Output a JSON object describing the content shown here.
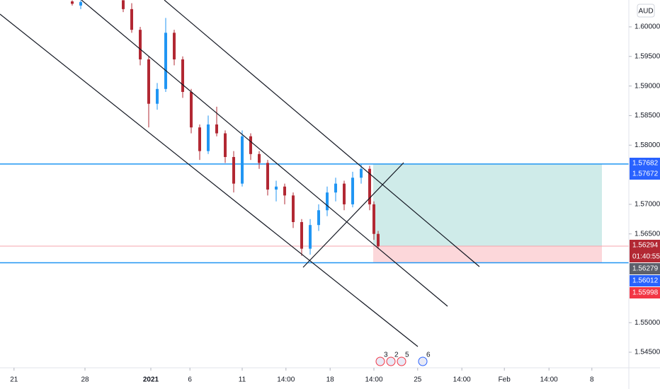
{
  "chart_data": {
    "type": "candlestick",
    "currency": "AUD",
    "up_color": "#2196f3",
    "down_color": "#b22833",
    "x": [
      17,
      19,
      29,
      31,
      33,
      35,
      37,
      39,
      41,
      43,
      45,
      47,
      49,
      51,
      53,
      55,
      57,
      59,
      61,
      63,
      65,
      67,
      69,
      71,
      73,
      75,
      77,
      79,
      81,
      83,
      85,
      87,
      88,
      89
    ],
    "open": [
      1.6043,
      1.6036,
      1.6045,
      1.603,
      1.5995,
      1.5945,
      1.587,
      1.5895,
      1.599,
      1.5945,
      1.589,
      1.583,
      1.579,
      1.5835,
      1.582,
      1.578,
      1.5735,
      1.5815,
      1.5785,
      1.577,
      1.5725,
      1.573,
      1.5715,
      1.567,
      1.5625,
      1.5665,
      1.569,
      1.572,
      1.5735,
      1.57,
      1.5745,
      1.576,
      1.57,
      1.565
    ],
    "high": [
      1.6045,
      1.6045,
      1.6045,
      1.604,
      1.6,
      1.595,
      1.5905,
      1.6015,
      1.5995,
      1.595,
      1.5895,
      1.5835,
      1.585,
      1.5865,
      1.5825,
      1.579,
      1.5825,
      1.582,
      1.579,
      1.5775,
      1.574,
      1.5735,
      1.572,
      1.5675,
      1.5675,
      1.57,
      1.573,
      1.5745,
      1.574,
      1.5755,
      1.5768,
      1.5765,
      1.5705,
      1.5655
    ],
    "low": [
      1.6036,
      1.603,
      1.6025,
      1.599,
      1.5935,
      1.583,
      1.586,
      1.589,
      1.5935,
      1.588,
      1.582,
      1.5775,
      1.5785,
      1.5815,
      1.577,
      1.572,
      1.573,
      1.5775,
      1.576,
      1.5715,
      1.5705,
      1.57,
      1.566,
      1.5613,
      1.5615,
      1.5655,
      1.568,
      1.5705,
      1.569,
      1.5695,
      1.5735,
      1.569,
      1.564,
      1.5625
    ],
    "close": [
      1.6039,
      1.6042,
      1.603,
      1.5995,
      1.5945,
      1.587,
      1.5895,
      1.599,
      1.5945,
      1.589,
      1.583,
      1.579,
      1.5835,
      1.582,
      1.578,
      1.5735,
      1.5815,
      1.5785,
      1.577,
      1.5725,
      1.573,
      1.5715,
      1.567,
      1.5625,
      1.5665,
      1.569,
      1.572,
      1.5735,
      1.57,
      1.5745,
      1.576,
      1.57,
      1.565,
      1.5629
    ],
    "xlim": [
      0,
      148
    ],
    "xticks": [
      {
        "value": 3.3,
        "label": "21"
      },
      {
        "value": 20,
        "label": "28"
      },
      {
        "value": 35.5,
        "label": "2021"
      },
      {
        "value": 44.7,
        "label": "6"
      },
      {
        "value": 57,
        "label": "11"
      },
      {
        "value": 67.3,
        "label": "14:00"
      },
      {
        "value": 77.7,
        "label": "18"
      },
      {
        "value": 88,
        "label": "14:00"
      },
      {
        "value": 98.3,
        "label": "25"
      },
      {
        "value": 108.7,
        "label": "14:00"
      },
      {
        "value": 118.7,
        "label": "Feb"
      },
      {
        "value": 129.2,
        "label": "14:00"
      },
      {
        "value": 139.3,
        "label": "8"
      }
    ],
    "ylim": [
      1.54237,
      1.60454
    ],
    "yticks": [
      {
        "value": 1.6,
        "label": "1.60000"
      },
      {
        "value": 1.595,
        "label": "1.59500"
      },
      {
        "value": 1.59,
        "label": "1.59000"
      },
      {
        "value": 1.585,
        "label": "1.58500"
      },
      {
        "value": 1.58,
        "label": "1.58000"
      },
      {
        "value": 1.57,
        "label": "1.57000"
      },
      {
        "value": 1.565,
        "label": "1.56500"
      },
      {
        "value": 1.55,
        "label": "1.55000"
      },
      {
        "value": 1.545,
        "label": "1.54500"
      }
    ],
    "price_tags": [
      {
        "value": 1.57682,
        "color": "#2962ff"
      },
      {
        "value": 1.57672,
        "color": "#2962ff"
      },
      {
        "value": 1.56294,
        "color": "#b22833"
      },
      {
        "countdown": "01:40:55",
        "color": "#b22833"
      },
      {
        "value": 1.56279,
        "color": "#5d606b"
      },
      {
        "value": 1.56012,
        "color": "#2962ff"
      },
      {
        "value": 1.55998,
        "color": "#f23645"
      }
    ],
    "events": [
      "3",
      "2",
      "5",
      "6"
    ]
  }
}
